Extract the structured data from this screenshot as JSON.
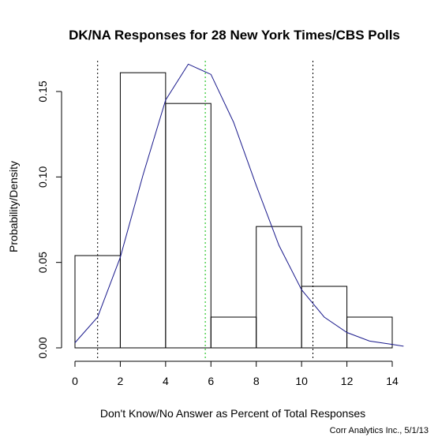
{
  "chart_data": {
    "type": "bar",
    "title": "DK/NA Responses for 28 New York Times/CBS Polls",
    "xlabel": "Don't Know/No Answer as Percent of Total Responses",
    "ylabel": "Probability/Density",
    "credit": "Corr Analytics Inc., 5/1/13",
    "xlim": [
      0,
      14.5
    ],
    "ylim": [
      0,
      0.167
    ],
    "x_ticks": [
      0,
      2,
      4,
      6,
      8,
      10,
      12,
      14
    ],
    "x_tick_labels": [
      "0",
      "2",
      "4",
      "6",
      "8",
      "10",
      "12",
      "14"
    ],
    "y_ticks": [
      0,
      0.05,
      0.1,
      0.15
    ],
    "y_tick_labels": [
      "0.00",
      "0.05",
      "0.10",
      "0.15"
    ],
    "histogram": {
      "bins": [
        {
          "x0": 0,
          "x1": 2,
          "density": 0.054
        },
        {
          "x0": 2,
          "x1": 4,
          "density": 0.161
        },
        {
          "x0": 4,
          "x1": 6,
          "density": 0.143
        },
        {
          "x0": 6,
          "x1": 8,
          "density": 0.018
        },
        {
          "x0": 8,
          "x1": 10,
          "density": 0.071
        },
        {
          "x0": 10,
          "x1": 12,
          "density": 0.036
        },
        {
          "x0": 12,
          "x1": 14,
          "density": 0.018
        }
      ],
      "stroke": "#000000",
      "fill": "none"
    },
    "density_curve": {
      "color": "#1a1a8c",
      "x": [
        0,
        1,
        2,
        3,
        4,
        5,
        6,
        7,
        8,
        9,
        10,
        11,
        12,
        13,
        14,
        14.5
      ],
      "y": [
        0.003,
        0.018,
        0.053,
        0.101,
        0.145,
        0.166,
        0.16,
        0.132,
        0.095,
        0.06,
        0.034,
        0.018,
        0.009,
        0.004,
        0.002,
        0.001
      ]
    },
    "reference_lines": [
      {
        "x": 1.0,
        "color": "#000000",
        "style": "dotted"
      },
      {
        "x": 5.75,
        "color": "#00bb00",
        "style": "dotted"
      },
      {
        "x": 10.5,
        "color": "#000000",
        "style": "dotted"
      }
    ],
    "grid": false,
    "legend": "none"
  }
}
